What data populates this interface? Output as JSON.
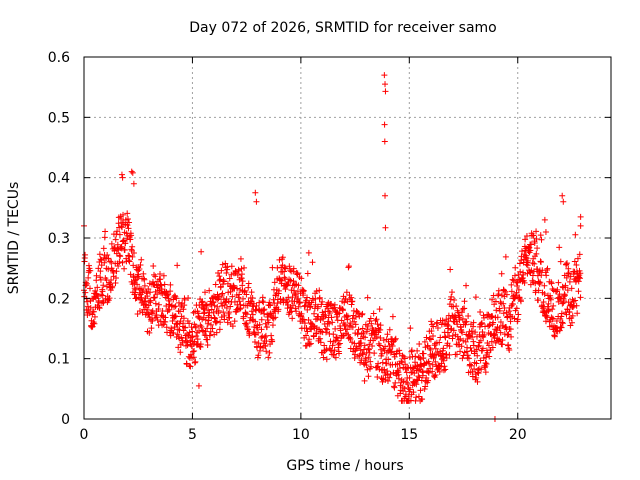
{
  "chart_data": {
    "type": "scatter",
    "title": "Day 072 of 2026, SRMTID for receiver samo",
    "xlabel": "GPS time / hours",
    "ylabel": "SRMTID / TECUs",
    "xlim": [
      0,
      24.3
    ],
    "ylim": [
      0,
      0.6
    ],
    "xticks": [
      0,
      5,
      10,
      15,
      20
    ],
    "yticks": [
      0,
      0.1,
      0.2,
      0.3,
      0.4,
      0.5,
      0.6
    ],
    "xtick_labels": [
      "0",
      "5",
      "10",
      "15",
      "20"
    ],
    "ytick_labels": [
      "0",
      "0.1",
      "0.2",
      "0.3",
      "0.4",
      "0.5",
      "0.6"
    ],
    "grid": true,
    "marker": "+",
    "series": [
      {
        "name": "SRMTID",
        "color": "#ff0000",
        "profile": [
          [
            0.0,
            0.24
          ],
          [
            0.5,
            0.21
          ],
          [
            1.0,
            0.27
          ],
          [
            1.5,
            0.29
          ],
          [
            2.0,
            0.28
          ],
          [
            2.5,
            0.21
          ],
          [
            3.0,
            0.2
          ],
          [
            3.5,
            0.18
          ],
          [
            4.0,
            0.17
          ],
          [
            4.5,
            0.15
          ],
          [
            5.0,
            0.14
          ],
          [
            5.5,
            0.17
          ],
          [
            6.0,
            0.19
          ],
          [
            6.5,
            0.21
          ],
          [
            7.0,
            0.19
          ],
          [
            7.5,
            0.17
          ],
          [
            8.0,
            0.16
          ],
          [
            8.5,
            0.15
          ],
          [
            9.0,
            0.22
          ],
          [
            9.5,
            0.22
          ],
          [
            10.0,
            0.18
          ],
          [
            10.5,
            0.15
          ],
          [
            11.0,
            0.15
          ],
          [
            11.5,
            0.14
          ],
          [
            12.0,
            0.15
          ],
          [
            12.5,
            0.15
          ],
          [
            13.0,
            0.14
          ],
          [
            13.5,
            0.13
          ],
          [
            14.0,
            0.12
          ],
          [
            14.5,
            0.1
          ],
          [
            15.0,
            0.08
          ],
          [
            15.5,
            0.07
          ],
          [
            16.0,
            0.08
          ],
          [
            16.5,
            0.1
          ],
          [
            17.0,
            0.14
          ],
          [
            17.5,
            0.13
          ],
          [
            18.0,
            0.11
          ],
          [
            18.5,
            0.12
          ],
          [
            19.0,
            0.15
          ],
          [
            19.5,
            0.18
          ],
          [
            20.0,
            0.22
          ],
          [
            20.5,
            0.26
          ],
          [
            21.0,
            0.22
          ],
          [
            21.5,
            0.19
          ],
          [
            22.0,
            0.17
          ],
          [
            22.5,
            0.2
          ],
          [
            22.9,
            0.25
          ]
        ],
        "peaks": [
          [
            13.85,
            0.57
          ],
          [
            13.88,
            0.555
          ],
          [
            13.9,
            0.543
          ],
          [
            13.86,
            0.488
          ],
          [
            13.87,
            0.46
          ],
          [
            13.88,
            0.37
          ],
          [
            13.9,
            0.317
          ],
          [
            1.75,
            0.405
          ],
          [
            1.78,
            0.4
          ],
          [
            2.2,
            0.41
          ],
          [
            2.25,
            0.408
          ],
          [
            2.3,
            0.39
          ],
          [
            7.9,
            0.375
          ],
          [
            7.95,
            0.36
          ],
          [
            22.05,
            0.37
          ],
          [
            22.1,
            0.36
          ],
          [
            21.25,
            0.33
          ],
          [
            21.3,
            0.31
          ],
          [
            22.9,
            0.335
          ],
          [
            22.9,
            0.32
          ],
          [
            0.0,
            0.32
          ],
          [
            18.95,
            0.0
          ],
          [
            5.3,
            0.055
          ],
          [
            15.5,
            0.03
          ]
        ]
      }
    ]
  }
}
